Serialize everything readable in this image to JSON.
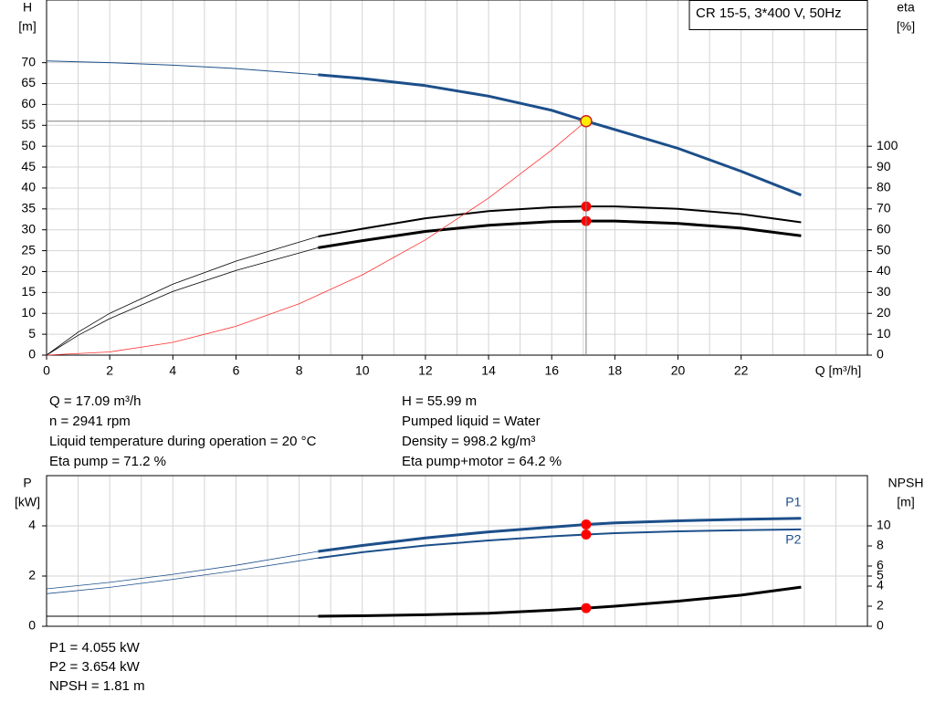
{
  "chart_data": [
    {
      "type": "line",
      "title": "CR 15-5, 3*400 V, 50Hz",
      "ylabel": [
        "H",
        "[m]"
      ],
      "y2label": [
        "eta",
        "[%]"
      ],
      "xlabel": "Q [m³/h]",
      "xlim": [
        0,
        26
      ],
      "xticks": [
        0,
        2,
        4,
        6,
        8,
        10,
        12,
        14,
        16,
        18,
        20,
        22
      ],
      "xgrid": [
        1,
        3,
        5,
        7,
        9,
        11,
        13,
        15,
        17,
        19,
        21,
        23,
        24,
        25
      ],
      "ylim": [
        0,
        85
      ],
      "yticks": [
        0,
        5,
        10,
        15,
        20,
        25,
        30,
        35,
        40,
        45,
        50,
        55,
        60,
        65,
        70
      ],
      "y2lim": [
        0,
        170
      ],
      "y2ticks": [
        0,
        10,
        20,
        30,
        40,
        50,
        60,
        70,
        80,
        90,
        100
      ],
      "grid": true,
      "series": [
        {
          "x": [
            0,
            2,
            4,
            6,
            8.6
          ],
          "values": [
            70.4,
            70.0,
            69.4,
            68.6,
            67.1
          ],
          "color": "#1c4f8a",
          "width": 1
        },
        {
          "x": [
            8.6,
            10,
            12,
            14,
            16,
            17.09,
            18,
            20,
            22,
            23.9
          ],
          "values": [
            67.1,
            66.2,
            64.5,
            62.0,
            58.6,
            56.0,
            54.0,
            49.5,
            44.0,
            38.3
          ],
          "color": "#1c4f8a",
          "width": 3
        },
        {
          "x": [
            0,
            1,
            2,
            4,
            6,
            8.6
          ],
          "values": [
            0,
            11,
            20,
            34,
            45,
            56.8
          ],
          "color": "#000000",
          "width": 0.8,
          "axis": "y2"
        },
        {
          "x": [
            8.6,
            10,
            12,
            14,
            16,
            17.09,
            18,
            20,
            22,
            23.9
          ],
          "values": [
            56.8,
            60.5,
            65.5,
            68.9,
            70.8,
            71.2,
            71.2,
            70.0,
            67.5,
            63.6
          ],
          "color": "#000000",
          "width": 2,
          "axis": "y2"
        },
        {
          "x": [
            0,
            1,
            2,
            4,
            6,
            8.6
          ],
          "values": [
            0,
            9.5,
            17.5,
            30.5,
            40.5,
            51.4
          ],
          "color": "#000000",
          "width": 0.8,
          "axis": "y2"
        },
        {
          "x": [
            8.6,
            10,
            12,
            14,
            16,
            17.09,
            18,
            20,
            22,
            23.9
          ],
          "values": [
            51.4,
            54.8,
            59.2,
            62.2,
            63.9,
            64.2,
            64.2,
            63.0,
            60.8,
            57.1
          ],
          "color": "#000000",
          "width": 3,
          "axis": "y2"
        },
        {
          "x": [
            0,
            2,
            4,
            6,
            8,
            10,
            12,
            14,
            16,
            17.09
          ],
          "values": [
            0,
            0.77,
            3.07,
            6.9,
            12.3,
            19.2,
            27.6,
            37.6,
            49.1,
            56.0
          ],
          "color": "#ff3030",
          "width": 0.8
        }
      ],
      "points": [
        {
          "x": 17.09,
          "value": 71.2,
          "color": "#ff0000",
          "axis": "y2"
        },
        {
          "x": 17.09,
          "value": 64.2,
          "color": "#ff0000",
          "axis": "y2"
        },
        {
          "x": 17.09,
          "value": 55.99,
          "color": "#ffee00",
          "crosshair": true
        }
      ]
    },
    {
      "type": "line",
      "ylabel": [
        "P",
        "[kW]"
      ],
      "y2label": [
        "NPSH",
        "[m]"
      ],
      "xlim": [
        0,
        26
      ],
      "xgrid": [
        1,
        2,
        3,
        4,
        5,
        6,
        7,
        8,
        9,
        10,
        11,
        12,
        13,
        14,
        15,
        16,
        17,
        18,
        19,
        20,
        21,
        22,
        23,
        24,
        25
      ],
      "ylim": [
        0,
        6
      ],
      "yticks": [
        0,
        2,
        4
      ],
      "y2lim": [
        0,
        15
      ],
      "y2ticks": [
        0,
        2,
        4,
        5,
        6,
        8,
        10
      ],
      "grid": true,
      "series": [
        {
          "x": [
            0,
            2,
            4,
            6,
            8.6
          ],
          "values": [
            1.49,
            1.75,
            2.07,
            2.43,
            2.98
          ],
          "color": "#1c4f8a",
          "width": 0.8
        },
        {
          "name": "P1",
          "x": [
            8.6,
            10,
            12,
            14,
            16,
            17.09,
            18,
            20,
            22,
            23.9
          ],
          "values": [
            2.98,
            3.22,
            3.52,
            3.76,
            3.95,
            4.055,
            4.12,
            4.2,
            4.26,
            4.3
          ],
          "color": "#1c4f8a",
          "width": 3
        },
        {
          "x": [
            0,
            2,
            4,
            6,
            8.6
          ],
          "values": [
            1.3,
            1.55,
            1.87,
            2.22,
            2.72
          ],
          "color": "#1c4f8a",
          "width": 0.8
        },
        {
          "name": "P2",
          "x": [
            8.6,
            10,
            12,
            14,
            16,
            17.09,
            18,
            20,
            22,
            23.9
          ],
          "values": [
            2.72,
            2.95,
            3.22,
            3.42,
            3.58,
            3.654,
            3.71,
            3.78,
            3.83,
            3.86
          ],
          "color": "#1c4f8a",
          "width": 2
        },
        {
          "x": [
            0,
            8.6
          ],
          "values": [
            1.0,
            1.0
          ],
          "color": "#000000",
          "width": 1,
          "axis": "y2"
        },
        {
          "x": [
            8.6,
            10,
            12,
            14,
            16,
            17.09,
            18,
            20,
            22,
            23.9
          ],
          "values": [
            1.0,
            1.05,
            1.15,
            1.3,
            1.6,
            1.81,
            2.0,
            2.5,
            3.1,
            3.9
          ],
          "color": "#000000",
          "width": 3,
          "axis": "y2"
        }
      ],
      "points": [
        {
          "x": 17.09,
          "value": 4.055,
          "color": "#ff0000"
        },
        {
          "x": 17.09,
          "value": 3.654,
          "color": "#ff0000"
        },
        {
          "x": 17.09,
          "value": 1.81,
          "color": "#ff0000",
          "axis": "y2"
        }
      ]
    }
  ],
  "readouts": {
    "left": [
      "Q = 17.09 m³/h",
      "n = 2941 rpm",
      "Liquid temperature during operation = 20 °C",
      "Eta pump = 71.2 %"
    ],
    "right": [
      "H = 55.99 m",
      "Pumped liquid = Water",
      "Density = 998.2 kg/m³",
      "Eta pump+motor = 64.2 %"
    ],
    "bottom": [
      "P1 = 4.055 kW",
      "P2 = 3.654 kW",
      "NPSH = 1.81 m"
    ]
  }
}
